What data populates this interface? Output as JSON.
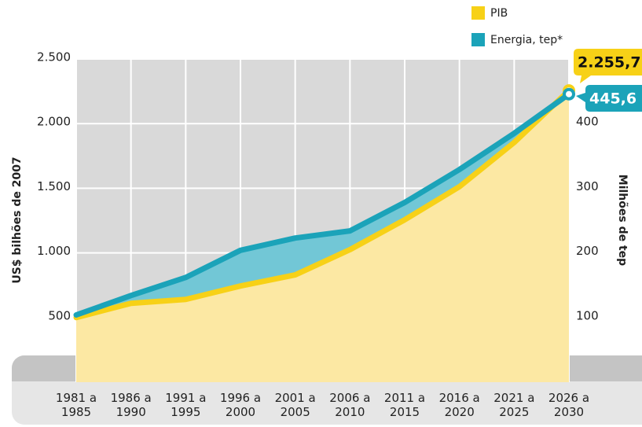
{
  "chart_data": {
    "type": "line",
    "categories": [
      "1981 a 1985",
      "1986 a 1990",
      "1991 a 1995",
      "1996 a 2000",
      "2001 a 2005",
      "2006 a 2010",
      "2011 a 2015",
      "2016 a 2020",
      "2021 a 2025",
      "2026 a 2030"
    ],
    "series": [
      {
        "name": "PIB",
        "color": "#f7d117",
        "values": [
          500,
          610,
          640,
          744,
          830,
          1025,
          1256,
          1512,
          1854,
          2255.7
        ],
        "value_labels": [
          null,
          null,
          null,
          null,
          null,
          null,
          null,
          null,
          null,
          "2.255,7"
        ]
      },
      {
        "name": "Energia, tep*",
        "color": "#1ba3b9",
        "axis": "y2",
        "values": [
          104,
          134,
          162,
          204,
          223,
          234,
          278,
          329,
          385,
          445.6
        ],
        "value_labels": [
          null,
          null,
          null,
          null,
          null,
          null,
          null,
          null,
          null,
          "445,6"
        ]
      }
    ],
    "ylabel": "US$ bilhões de 2007",
    "y2label": "Milhões de tep",
    "ylim": [
      0,
      2500
    ],
    "yticks": [
      {
        "value": 500,
        "label": "500"
      },
      {
        "value": 1000,
        "label": "1.000"
      },
      {
        "value": 1500,
        "label": "1.500"
      },
      {
        "value": 2000,
        "label": "2.000"
      },
      {
        "value": 2500,
        "label": "2.500"
      }
    ],
    "y2lim": [
      0,
      500
    ],
    "y2ticks": [
      100,
      200,
      300,
      400
    ],
    "grid": true,
    "legend": "top-right"
  }
}
